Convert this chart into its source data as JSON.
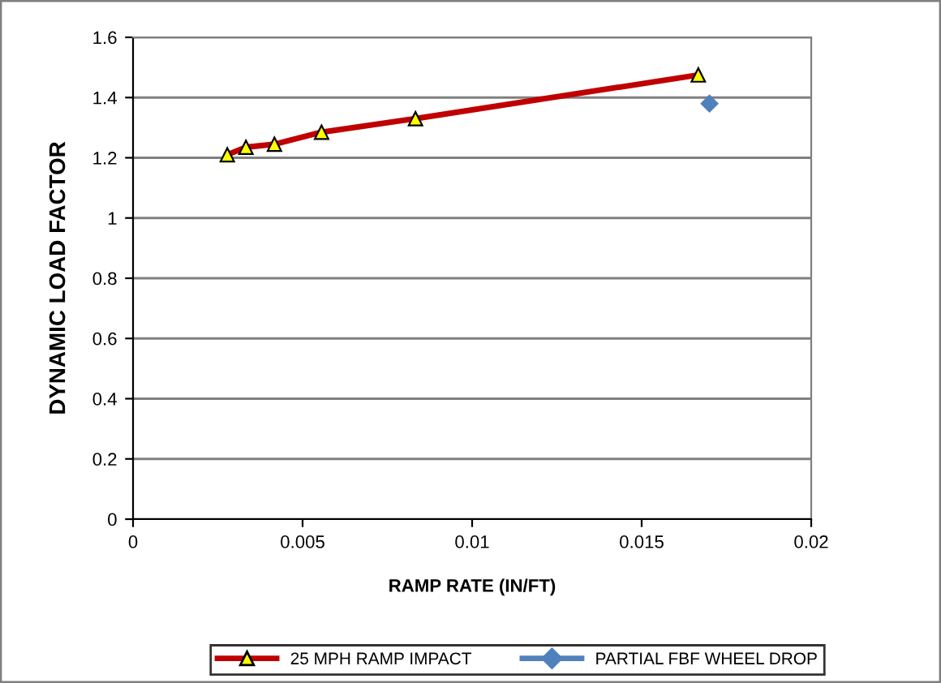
{
  "chart_data": {
    "type": "line",
    "xlabel": "RAMP RATE (IN/FT)",
    "ylabel": "DYNAMIC LOAD FACTOR",
    "series": [
      {
        "name": "25 MPH RAMP IMPACT",
        "color": "#c00000",
        "x": [
          0.00278,
          0.00333,
          0.00417,
          0.00556,
          0.00833,
          0.01667
        ],
        "values": [
          1.21,
          1.235,
          1.245,
          1.285,
          1.33,
          1.475
        ],
        "marker": "triangle"
      },
      {
        "name": "PARTIAL FBF WHEEL DROP",
        "color": "#4f81bd",
        "x": [
          0.017
        ],
        "values": [
          1.38
        ],
        "marker": "diamond"
      }
    ],
    "xlim": [
      0,
      0.02
    ],
    "xticks": [
      0,
      0.005,
      0.01,
      0.015,
      0.02
    ],
    "ylim": [
      0,
      1.6
    ],
    "yticks": [
      0,
      0.2,
      0.4,
      0.6,
      0.8,
      1,
      1.2,
      1.4,
      1.6
    ],
    "grid": "y",
    "legend": "bottom"
  }
}
